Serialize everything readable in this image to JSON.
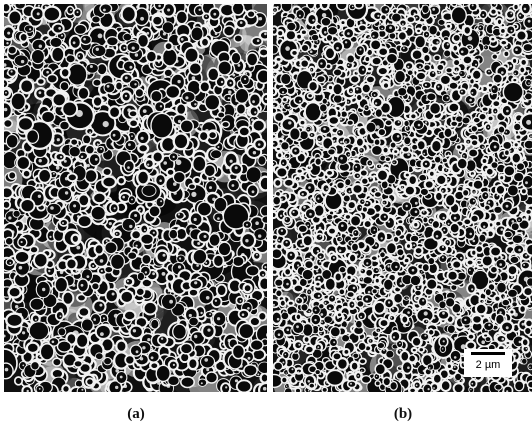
{
  "panels": [
    {
      "id": "a",
      "label": "(a)"
    },
    {
      "id": "b",
      "label": "(b)"
    }
  ],
  "scale_bar": {
    "text": "2 µm"
  }
}
